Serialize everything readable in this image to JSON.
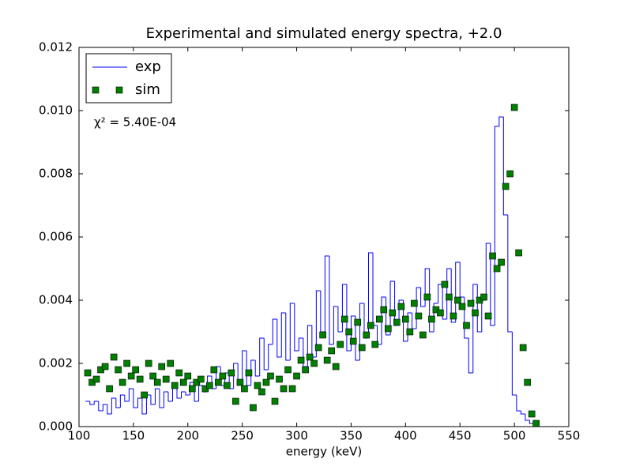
{
  "chart_data": {
    "type": "step-scatter",
    "title": "Experimental and simulated energy spectra, +2.0",
    "x_label": "energy (keV)",
    "annotation": "χ² = 5.40E-04",
    "legend": "upper left",
    "xlim": [
      100,
      550
    ],
    "xticks": [
      100,
      150,
      200,
      250,
      300,
      350,
      400,
      450,
      500,
      550
    ],
    "ylim": [
      0,
      0.012
    ],
    "yticks": [
      {
        "value": 0,
        "label": "0.000"
      },
      {
        "value": 0.002,
        "label": "0.002"
      },
      {
        "value": 0.004,
        "label": "0.004"
      },
      {
        "value": 0.006,
        "label": "0.006"
      },
      {
        "value": 0.008,
        "label": "0.008"
      },
      {
        "value": 0.01,
        "label": "0.010"
      },
      {
        "value": 0.012,
        "label": "0.012"
      }
    ],
    "series": [
      {
        "name": "exp",
        "color": "#0000ff",
        "style": "step",
        "x": [
          106,
          110,
          114,
          118,
          122,
          126,
          130,
          134,
          138,
          142,
          146,
          150,
          154,
          158,
          162,
          166,
          170,
          174,
          178,
          182,
          186,
          190,
          194,
          198,
          202,
          206,
          210,
          214,
          218,
          222,
          226,
          230,
          234,
          238,
          242,
          246,
          250,
          254,
          258,
          262,
          266,
          270,
          274,
          278,
          282,
          286,
          290,
          294,
          298,
          302,
          306,
          310,
          314,
          318,
          322,
          326,
          330,
          334,
          338,
          342,
          346,
          350,
          354,
          358,
          362,
          366,
          370,
          374,
          378,
          382,
          386,
          390,
          394,
          398,
          402,
          406,
          410,
          414,
          418,
          422,
          426,
          430,
          434,
          438,
          442,
          446,
          450,
          454,
          458,
          462,
          466,
          470,
          474,
          478,
          482,
          486,
          490,
          494,
          498,
          502,
          506,
          510,
          514,
          518
        ],
        "values": [
          0.0008,
          0.0007,
          0.0008,
          0.0005,
          0.0007,
          0.0004,
          0.0009,
          0.0006,
          0.001,
          0.0008,
          0.0012,
          0.0006,
          0.0009,
          0.0004,
          0.001,
          0.0007,
          0.0012,
          0.0006,
          0.0011,
          0.0008,
          0.0013,
          0.0009,
          0.0011,
          0.001,
          0.0014,
          0.0008,
          0.0013,
          0.0011,
          0.0016,
          0.0012,
          0.0019,
          0.0013,
          0.0017,
          0.0012,
          0.002,
          0.0014,
          0.0024,
          0.0013,
          0.0021,
          0.0016,
          0.0028,
          0.0018,
          0.0026,
          0.0034,
          0.0022,
          0.0036,
          0.0021,
          0.0039,
          0.0024,
          0.0028,
          0.0019,
          0.0032,
          0.0022,
          0.0043,
          0.003,
          0.0054,
          0.0026,
          0.0038,
          0.003,
          0.0045,
          0.0024,
          0.0035,
          0.0021,
          0.0039,
          0.0028,
          0.0055,
          0.0032,
          0.0026,
          0.0041,
          0.0029,
          0.0046,
          0.0032,
          0.004,
          0.0027,
          0.0036,
          0.0031,
          0.0044,
          0.0038,
          0.005,
          0.003,
          0.0039,
          0.0045,
          0.0034,
          0.005,
          0.0033,
          0.0052,
          0.0041,
          0.0028,
          0.0017,
          0.0045,
          0.003,
          0.004,
          0.0058,
          0.0032,
          0.0095,
          0.0098,
          0.0067,
          0.003,
          0.001,
          0.0005,
          0.0004,
          0.0002,
          0.0001,
          0
        ]
      },
      {
        "name": "sim",
        "color": "#008000",
        "style": "marker",
        "x": [
          108,
          112,
          116,
          120,
          124,
          128,
          132,
          136,
          140,
          144,
          148,
          152,
          156,
          160,
          164,
          168,
          172,
          176,
          180,
          184,
          188,
          192,
          196,
          200,
          204,
          208,
          212,
          216,
          220,
          224,
          228,
          232,
          236,
          240,
          244,
          248,
          252,
          256,
          260,
          264,
          268,
          272,
          276,
          280,
          284,
          288,
          292,
          296,
          300,
          304,
          308,
          312,
          316,
          320,
          324,
          328,
          332,
          336,
          340,
          344,
          348,
          352,
          356,
          360,
          364,
          368,
          372,
          376,
          380,
          384,
          388,
          392,
          396,
          400,
          404,
          408,
          412,
          416,
          420,
          424,
          428,
          432,
          436,
          440,
          444,
          448,
          452,
          456,
          460,
          464,
          468,
          472,
          476,
          480,
          484,
          488,
          492,
          496,
          500,
          504,
          508,
          512,
          516,
          520
        ],
        "values": [
          0.0017,
          0.0014,
          0.0015,
          0.0018,
          0.0019,
          0.0012,
          0.0022,
          0.0018,
          0.0014,
          0.002,
          0.0016,
          0.0018,
          0.0015,
          0.001,
          0.002,
          0.0016,
          0.0014,
          0.0019,
          0.0015,
          0.002,
          0.0013,
          0.0017,
          0.0014,
          0.0016,
          0.0012,
          0.0014,
          0.0015,
          0.0012,
          0.0013,
          0.0018,
          0.0014,
          0.0016,
          0.0013,
          0.0017,
          0.0008,
          0.0014,
          0.0012,
          0.0017,
          0.0006,
          0.0013,
          0.0011,
          0.0014,
          0.0016,
          0.0008,
          0.0015,
          0.0012,
          0.0018,
          0.0012,
          0.0016,
          0.0021,
          0.0018,
          0.0022,
          0.002,
          0.0025,
          0.0029,
          0.0021,
          0.0024,
          0.0019,
          0.0026,
          0.0034,
          0.003,
          0.0027,
          0.0033,
          0.0025,
          0.0029,
          0.0032,
          0.0026,
          0.0034,
          0.0037,
          0.0031,
          0.0036,
          0.0033,
          0.0038,
          0.0034,
          0.003,
          0.0039,
          0.0035,
          0.0029,
          0.0041,
          0.0034,
          0.0037,
          0.0036,
          0.0045,
          0.0041,
          0.0035,
          0.004,
          0.0038,
          0.0032,
          0.0039,
          0.0036,
          0.004,
          0.0041,
          0.0035,
          0.0054,
          0.005,
          0.0052,
          0.0076,
          0.008,
          0.0101,
          0.0055,
          0.0025,
          0.0014,
          0.0004,
          0.0001
        ]
      }
    ]
  }
}
